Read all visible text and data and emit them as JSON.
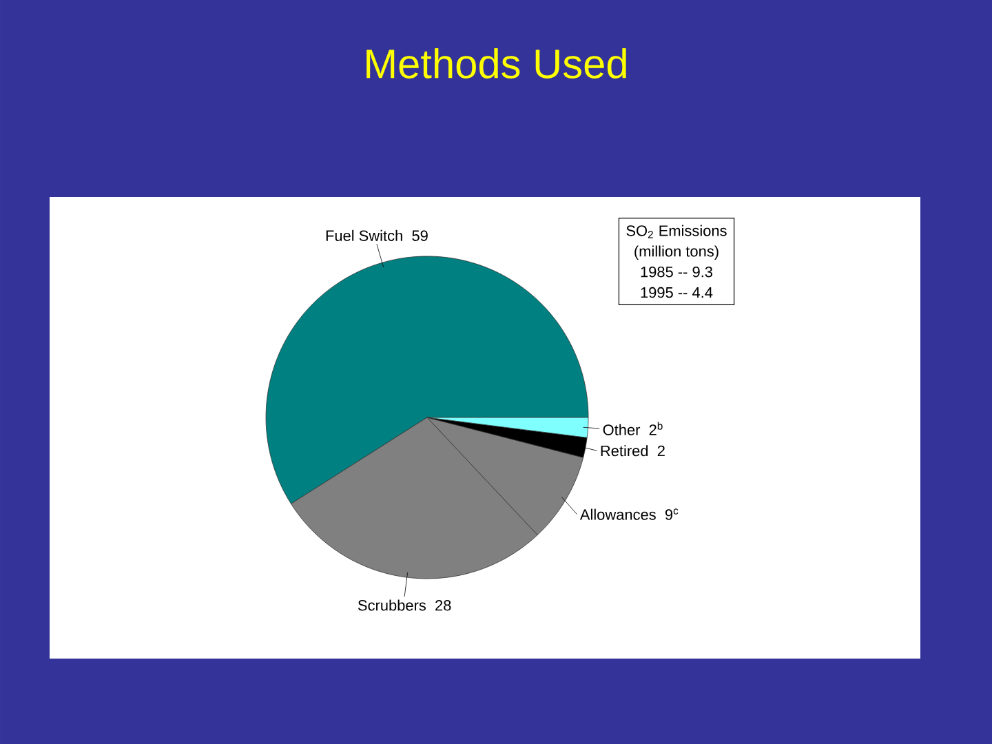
{
  "chart_data": {
    "type": "pie",
    "title": "Methods Used",
    "categories": [
      "Fuel Switch",
      "Scrubbers",
      "Allowances",
      "Retired",
      "Other"
    ],
    "values": [
      59,
      28,
      9,
      2,
      2
    ],
    "value_labels": [
      "59",
      "28",
      "9$^{c}$",
      "2",
      "2$^{b}$"
    ],
    "colors": [
      "#008080",
      "#808080",
      "#808080",
      "#000000",
      "#80ffff"
    ],
    "annotations": [
      "SO$_{2}$ Emissions",
      "(million tons)",
      "1985 -- 9.3",
      "1995 -- 4.4"
    ]
  }
}
